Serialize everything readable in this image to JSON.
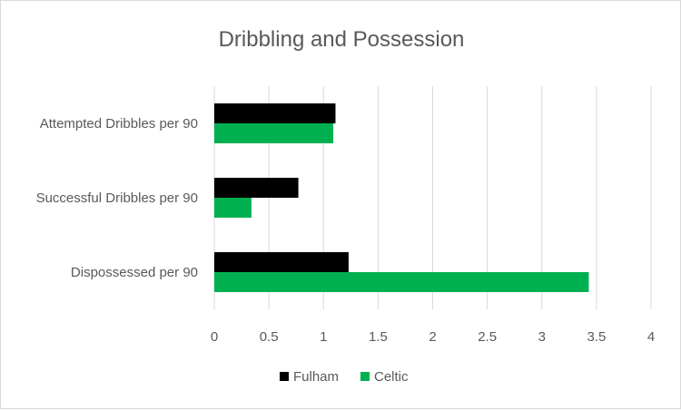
{
  "chart_data": {
    "type": "bar",
    "orientation": "horizontal",
    "title": "Dribbling and Possession",
    "categories": [
      "Attempted Dribbles per 90",
      "Successful Dribbles per 90",
      "Dispossessed per 90"
    ],
    "series": [
      {
        "name": "Fulham",
        "color": "#000000",
        "values": [
          1.11,
          0.77,
          1.23
        ]
      },
      {
        "name": "Celtic",
        "color": "#00b050",
        "values": [
          1.09,
          0.34,
          3.43
        ]
      }
    ],
    "xlim": [
      0,
      4
    ],
    "xticks": [
      "0",
      "0.5",
      "1",
      "1.5",
      "2",
      "2.5",
      "3",
      "3.5",
      "4"
    ],
    "grid": "vertical",
    "legend_position": "bottom"
  }
}
